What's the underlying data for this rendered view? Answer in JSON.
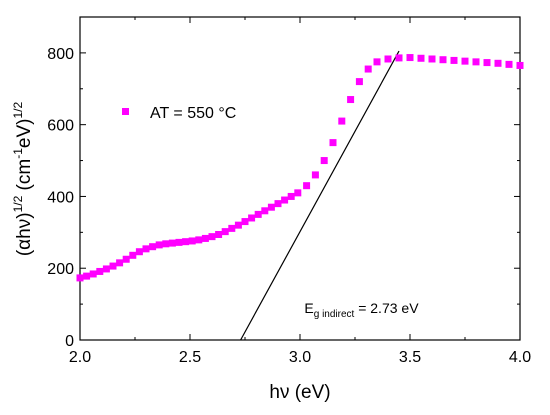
{
  "chart_data": {
    "type": "scatter",
    "xlabel": {
      "prefix": "h",
      "nu": "ν",
      "suffix": " (eV)"
    },
    "ylabel": {
      "open": "(",
      "alpha": "α",
      "hnu": "hν",
      "close": ")",
      "sup1": "1/2",
      "mid": " (cm",
      "sup2": "-1",
      "ev": "eV)",
      "sup3": "1/2"
    },
    "xlim": [
      2.0,
      4.0
    ],
    "ylim": [
      0,
      900
    ],
    "xticks": [
      "2.0",
      "2.5",
      "3.0",
      "3.5",
      "4.0"
    ],
    "xtick_values": [
      2.0,
      2.5,
      3.0,
      3.5,
      4.0
    ],
    "yticks": [
      "0",
      "200",
      "400",
      "600",
      "800"
    ],
    "ytick_values": [
      0,
      200,
      400,
      600,
      800
    ],
    "grid": false,
    "legend_position": "upper-left",
    "series": [
      {
        "name": "AT = 550 °C",
        "color": "#ff00ff",
        "marker": "square",
        "points": [
          [
            2.0,
            173
          ],
          [
            2.03,
            178
          ],
          [
            2.06,
            184
          ],
          [
            2.09,
            191
          ],
          [
            2.12,
            198
          ],
          [
            2.15,
            206
          ],
          [
            2.18,
            215
          ],
          [
            2.21,
            225
          ],
          [
            2.24,
            236
          ],
          [
            2.27,
            246
          ],
          [
            2.3,
            254
          ],
          [
            2.33,
            260
          ],
          [
            2.36,
            265
          ],
          [
            2.39,
            268
          ],
          [
            2.42,
            270
          ],
          [
            2.45,
            272
          ],
          [
            2.48,
            274
          ],
          [
            2.51,
            276
          ],
          [
            2.54,
            279
          ],
          [
            2.57,
            283
          ],
          [
            2.6,
            288
          ],
          [
            2.63,
            294
          ],
          [
            2.66,
            302
          ],
          [
            2.69,
            311
          ],
          [
            2.72,
            320
          ],
          [
            2.75,
            330
          ],
          [
            2.78,
            340
          ],
          [
            2.81,
            350
          ],
          [
            2.84,
            360
          ],
          [
            2.87,
            370
          ],
          [
            2.9,
            380
          ],
          [
            2.93,
            390
          ],
          [
            2.96,
            400
          ],
          [
            2.99,
            410
          ],
          [
            3.03,
            430
          ],
          [
            3.07,
            460
          ],
          [
            3.11,
            500
          ],
          [
            3.15,
            550
          ],
          [
            3.19,
            610
          ],
          [
            3.23,
            670
          ],
          [
            3.27,
            720
          ],
          [
            3.31,
            755
          ],
          [
            3.35,
            775
          ],
          [
            3.4,
            783
          ],
          [
            3.45,
            786
          ],
          [
            3.5,
            787
          ],
          [
            3.55,
            785
          ],
          [
            3.6,
            783
          ],
          [
            3.65,
            781
          ],
          [
            3.7,
            779
          ],
          [
            3.75,
            777
          ],
          [
            3.8,
            775
          ],
          [
            3.85,
            773
          ],
          [
            3.9,
            771
          ],
          [
            3.95,
            768
          ],
          [
            4.0,
            765
          ]
        ]
      }
    ],
    "fit_line": {
      "x": [
        2.73,
        3.45
      ],
      "y": [
        0,
        805
      ],
      "color": "#000000"
    },
    "annotation": {
      "main": "E",
      "sub": "g indirect",
      "value": " = 2.73 eV",
      "x": 3.02,
      "y": 75
    }
  }
}
